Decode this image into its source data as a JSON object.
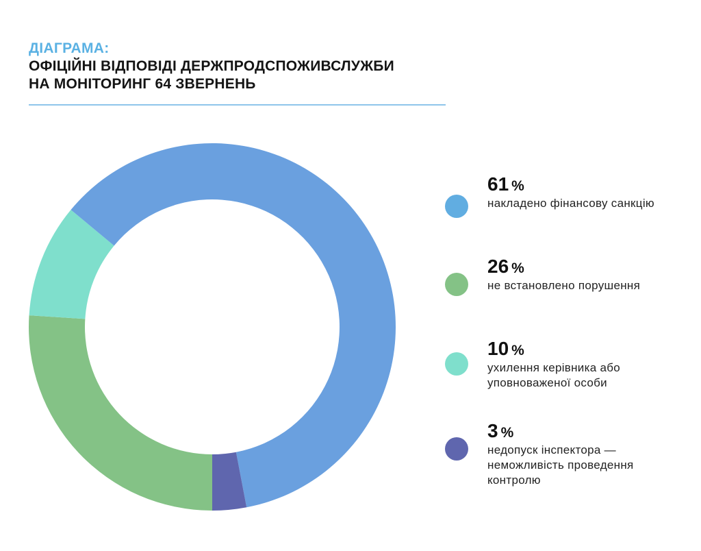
{
  "header": {
    "kicker": "ДІАГРАМА:",
    "title_line1": "ОФІЦІЙНІ ВІДПОВІДІ ДЕРЖПРОДСПОЖИВСЛУЖБИ",
    "title_line2": "НА МОНІТОРИНГ 64 ЗВЕРНЕНЬ"
  },
  "chart_data": {
    "type": "pie",
    "donut": true,
    "title": "ОФІЦІЙНІ ВІДПОВІДІ ДЕРЖПРОДСПОЖИВСЛУЖБИ НА МОНІТОРИНГ 64 ЗВЕРНЕНЬ",
    "legend_placement": "right",
    "start_angle_deg": 90,
    "direction": "clockwise",
    "slices": [
      {
        "name": "не встановлено порушення",
        "value": 26,
        "color": "#84c286"
      },
      {
        "name": "ухилення керівника або уповноваженої особи",
        "value": 10,
        "color": "#7fdfcc"
      },
      {
        "name": "накладено фінансову санкцію",
        "value": 61,
        "color": "#6aa0df"
      },
      {
        "name": "недопуск інспектора — неможливість проведення контролю",
        "value": 3,
        "color": "#5f66ae"
      }
    ]
  },
  "legend": {
    "percent_sign": "%",
    "items": [
      {
        "value": "61",
        "label": "накладено фінансову санкцію",
        "color": "#61ade1"
      },
      {
        "value": "26",
        "label": "не встановлено порушення",
        "color": "#84c286"
      },
      {
        "value": "10",
        "label": "ухилення керівника або уповноваженої особи",
        "color": "#7fdfcc"
      },
      {
        "value": "3",
        "label": "недопуск інспектора — неможливість проведення контролю",
        "color": "#5f66ae"
      }
    ]
  }
}
